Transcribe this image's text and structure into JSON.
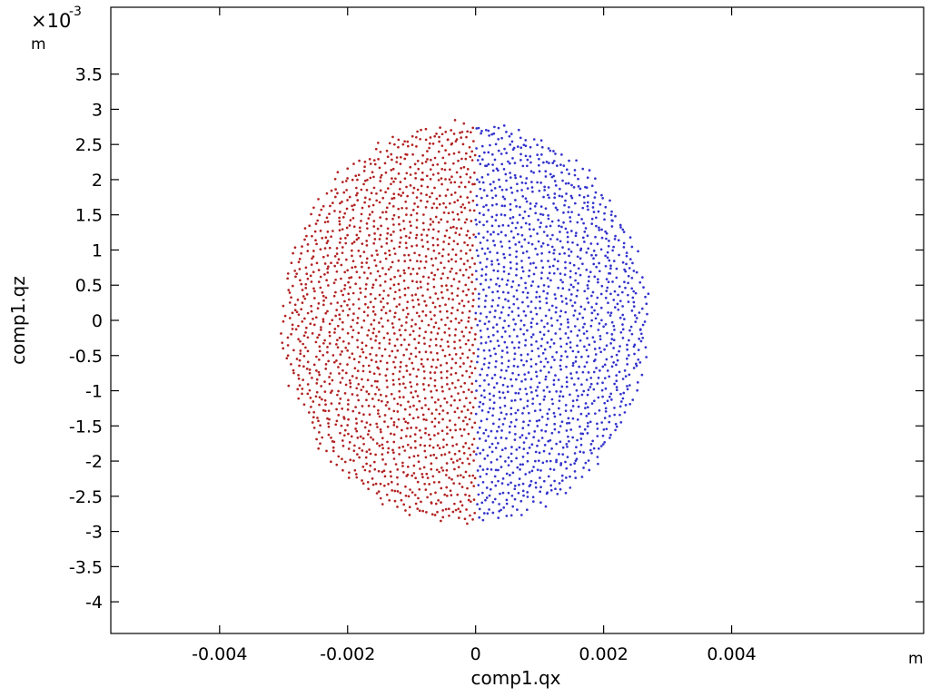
{
  "chart_data": {
    "type": "scatter",
    "xlabel": "comp1.qx",
    "ylabel": "comp1.qz",
    "x_unit": "m",
    "y_unit": "m",
    "y_multiplier": "×10",
    "y_exponent": "-3",
    "xlim": [
      -0.0057,
      0.007
    ],
    "ylim": [
      -0.00445,
      0.00445
    ],
    "x_ticks": [
      {
        "value": -0.004,
        "label": "-0.004"
      },
      {
        "value": -0.002,
        "label": "-0.002"
      },
      {
        "value": 0,
        "label": "0"
      },
      {
        "value": 0.002,
        "label": "0.002"
      },
      {
        "value": 0.004,
        "label": "0.004"
      }
    ],
    "y_ticks": [
      {
        "value": 0.0035,
        "label": "3.5"
      },
      {
        "value": 0.003,
        "label": "3"
      },
      {
        "value": 0.0025,
        "label": "2.5"
      },
      {
        "value": 0.002,
        "label": "2"
      },
      {
        "value": 0.0015,
        "label": "1.5"
      },
      {
        "value": 0.001,
        "label": "1"
      },
      {
        "value": 0.0005,
        "label": "0.5"
      },
      {
        "value": 0,
        "label": "0"
      },
      {
        "value": -0.0005,
        "label": "-0.5"
      },
      {
        "value": -0.001,
        "label": "-1"
      },
      {
        "value": -0.0015,
        "label": "-1.5"
      },
      {
        "value": -0.002,
        "label": "-2"
      },
      {
        "value": -0.0025,
        "label": "-2.5"
      },
      {
        "value": -0.003,
        "label": "-3"
      },
      {
        "value": -0.0035,
        "label": "-3.5"
      },
      {
        "value": -0.004,
        "label": "-4"
      }
    ],
    "grid": false,
    "legend": "none",
    "series": [
      {
        "color": "#b22222",
        "region": "left half of disk (qx < 0)",
        "disk_center": [
          -0.00016,
          -3e-05
        ],
        "disk_radius": 0.00285,
        "points": 1500
      },
      {
        "color": "#3333cc",
        "region": "right half of disk (qx > 0)",
        "disk_center": [
          -0.00016,
          -3e-05
        ],
        "disk_radius": 0.00285,
        "points": 1500
      }
    ]
  }
}
